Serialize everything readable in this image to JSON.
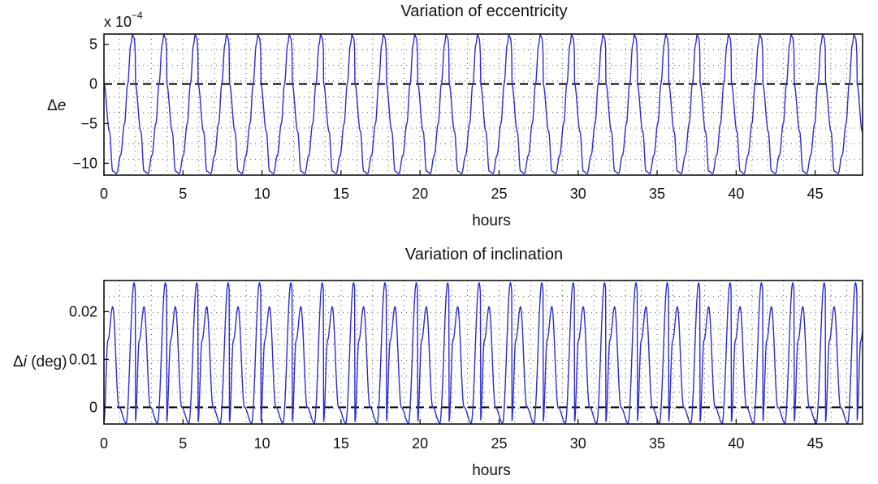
{
  "chart_data": [
    {
      "type": "line",
      "title": "Variation of eccentricity",
      "xlabel": "hours",
      "ylabel_symbol": "Δ",
      "ylabel_var": "e",
      "ylabel_unit": "",
      "exponent_prefix": "x 10",
      "exponent_power": "−4",
      "xlim": [
        0,
        48
      ],
      "ylim": [
        -11.5,
        6.3
      ],
      "xticks": [
        0,
        5,
        10,
        15,
        20,
        25,
        30,
        35,
        40,
        45
      ],
      "xtick_labels": [
        "0",
        "5",
        "10",
        "15",
        "20",
        "25",
        "30",
        "35",
        "40",
        "45"
      ],
      "yticks": [
        5,
        0,
        -5,
        -10
      ],
      "ytick_labels": [
        "5",
        "0",
        "−5",
        "−10"
      ],
      "grid": true,
      "reference_line": 0,
      "line_color": "#2b2bd6",
      "series": [
        {
          "period_hours": 1.985,
          "x": [
            0,
            0.35,
            0.55,
            0.8,
            1.05,
            1.3,
            1.5,
            1.7,
            1.8,
            1.9,
            2.1
          ],
          "y": [
            0,
            -6.0,
            -11.0,
            -11.3,
            -9.0,
            -5.0,
            0,
            5.0,
            6.2,
            5.8,
            0
          ]
        }
      ]
    },
    {
      "type": "line",
      "title": "Variation of inclination",
      "xlabel": "hours",
      "ylabel_symbol": "Δ",
      "ylabel_var": "i",
      "ylabel_unit": " (deg)",
      "xlim": [
        0,
        48
      ],
      "ylim": [
        -0.0035,
        0.0265
      ],
      "xticks": [
        0,
        5,
        10,
        15,
        20,
        25,
        30,
        35,
        40,
        45
      ],
      "xtick_labels": [
        "0",
        "5",
        "10",
        "15",
        "20",
        "25",
        "30",
        "35",
        "40",
        "45"
      ],
      "yticks": [
        0,
        0.01,
        0.02
      ],
      "ytick_labels": [
        "0",
        "0.01",
        "0.02"
      ],
      "grid": true,
      "reference_line": 0,
      "line_color": "#2b2bd6",
      "series": [
        {
          "period_hours": 1.985,
          "x": [
            0,
            0.25,
            0.55,
            0.95,
            1.4,
            1.9,
            2.35,
            2.85
          ],
          "y": [
            -0.003,
            0.014,
            0.021,
            0.0,
            -0.0033,
            0.026,
            0.0,
            0.021
          ]
        }
      ]
    }
  ]
}
